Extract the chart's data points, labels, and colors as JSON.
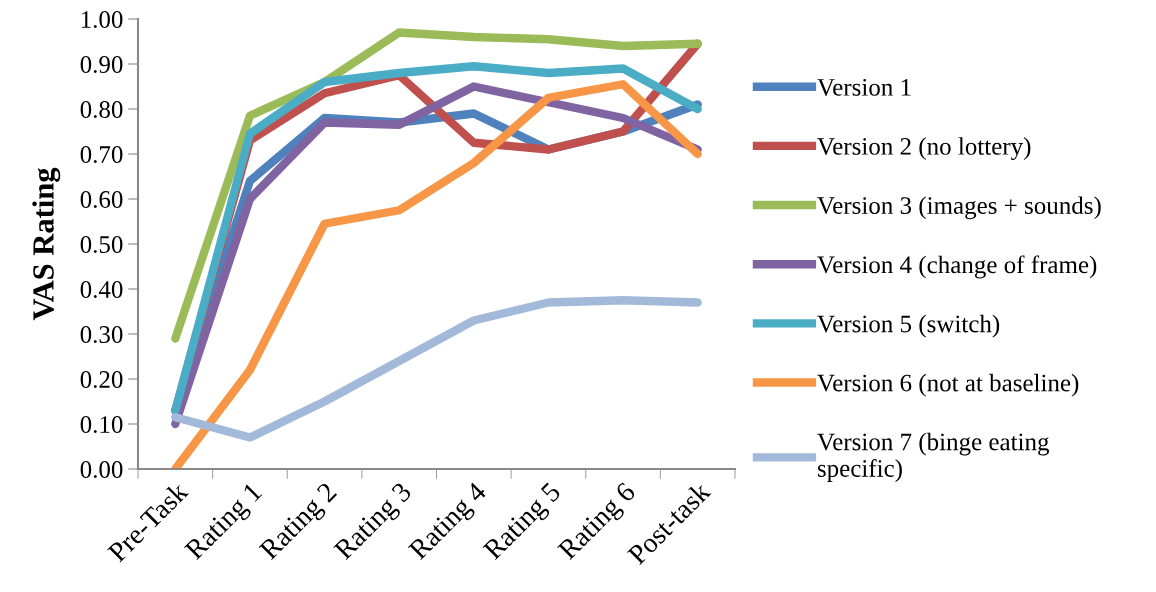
{
  "chart_data": {
    "type": "line",
    "ylabel": "VAS Rating",
    "categories": [
      "Pre-Task",
      "Rating 1",
      "Rating 2",
      "Rating 3",
      "Rating 4",
      "Rating 5",
      "Rating 6",
      "Post-task"
    ],
    "ylim": [
      0,
      1
    ],
    "yticks": [
      {
        "value": 0,
        "label": "0.00"
      },
      {
        "value": 0.1,
        "label": "0.10"
      },
      {
        "value": 0.2,
        "label": "0.20"
      },
      {
        "value": 0.3,
        "label": "0.30"
      },
      {
        "value": 0.4,
        "label": "0.40"
      },
      {
        "value": 0.5,
        "label": "0.50"
      },
      {
        "value": 0.6,
        "label": "0.60"
      },
      {
        "value": 0.7,
        "label": "0.70"
      },
      {
        "value": 0.8,
        "label": "0.80"
      },
      {
        "value": 0.9,
        "label": "0.90"
      },
      {
        "value": 1,
        "label": "1.00"
      }
    ],
    "grid": false,
    "legend": "right",
    "marker": "none",
    "line_style": "solid",
    "series": [
      {
        "name": "Version 1",
        "color": "#4f81bd",
        "values": [
          0.13,
          0.64,
          0.78,
          0.77,
          0.79,
          0.71,
          0.75,
          0.81
        ]
      },
      {
        "name": "Version 2 (no lottery)",
        "color": "#c0504d",
        "values": [
          0.13,
          0.73,
          0.835,
          0.875,
          0.725,
          0.71,
          0.75,
          0.945
        ]
      },
      {
        "name": "Version 3 (images + sounds)",
        "color": "#9bbb59",
        "values": [
          0.29,
          0.785,
          0.86,
          0.97,
          0.96,
          0.955,
          0.94,
          0.945
        ]
      },
      {
        "name": "Version 4 (change of frame)",
        "color": "#8064a2",
        "values": [
          0.1,
          0.6,
          0.77,
          0.765,
          0.85,
          0.815,
          0.78,
          0.71
        ]
      },
      {
        "name": "Version 5 (switch)",
        "color": "#4bacc6",
        "values": [
          0.13,
          0.745,
          0.86,
          0.88,
          0.895,
          0.88,
          0.89,
          0.8
        ]
      },
      {
        "name": "Version 6 (not at baseline)",
        "color": "#f79646",
        "values": [
          0.0,
          0.22,
          0.545,
          0.575,
          0.68,
          0.825,
          0.855,
          0.7
        ]
      },
      {
        "name": "Version 7 (binge eating\nspecific)",
        "color": "#a2b9da",
        "values": [
          0.115,
          0.07,
          0.15,
          0.24,
          0.33,
          0.37,
          0.375,
          0.37
        ]
      }
    ]
  }
}
